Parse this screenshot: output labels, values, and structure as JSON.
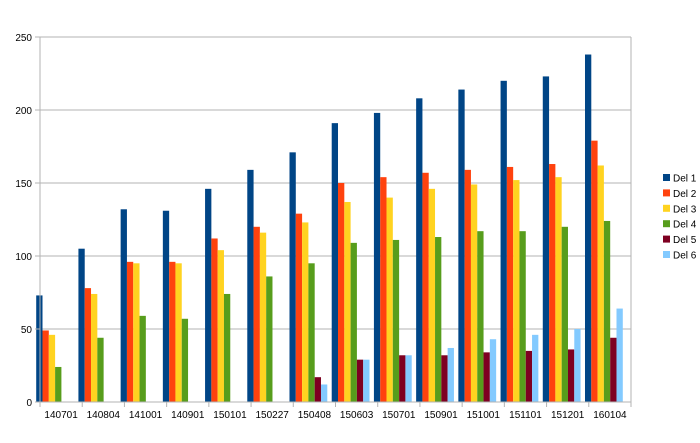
{
  "chart_data": {
    "type": "bar",
    "title": "",
    "xlabel": "",
    "ylabel": "",
    "ylim": [
      0,
      250
    ],
    "yticks": [
      0,
      50,
      100,
      150,
      200,
      250
    ],
    "grid": true,
    "legend_position": "right",
    "categories": [
      "140701",
      "140804",
      "141001",
      "140901",
      "150101",
      "150227",
      "150408",
      "150603",
      "150701",
      "150901",
      "151001",
      "151101",
      "151201",
      "160104"
    ],
    "series": [
      {
        "name": "Del 1",
        "color": "#004586",
        "values": [
          73,
          105,
          132,
          131,
          146,
          159,
          171,
          191,
          198,
          208,
          214,
          220,
          223,
          238
        ]
      },
      {
        "name": "Del 2",
        "color": "#ff420e",
        "values": [
          49,
          78,
          96,
          96,
          112,
          120,
          129,
          150,
          154,
          157,
          159,
          161,
          163,
          179
        ]
      },
      {
        "name": "Del 3",
        "color": "#ffd320",
        "values": [
          46,
          74,
          95,
          95,
          104,
          116,
          123,
          137,
          140,
          146,
          149,
          152,
          154,
          162
        ]
      },
      {
        "name": "Del 4",
        "color": "#579d1c",
        "values": [
          24,
          44,
          59,
          57,
          74,
          86,
          95,
          109,
          111,
          113,
          117,
          117,
          120,
          124
        ]
      },
      {
        "name": "Del 5",
        "color": "#7e0021",
        "values": [
          0,
          0,
          0,
          0,
          0,
          0,
          17,
          29,
          32,
          32,
          34,
          35,
          36,
          44
        ]
      },
      {
        "name": "Del 6",
        "color": "#83caff",
        "values": [
          0,
          0,
          0,
          0,
          0,
          0,
          12,
          29,
          32,
          37,
          43,
          46,
          50,
          64
        ]
      }
    ]
  }
}
